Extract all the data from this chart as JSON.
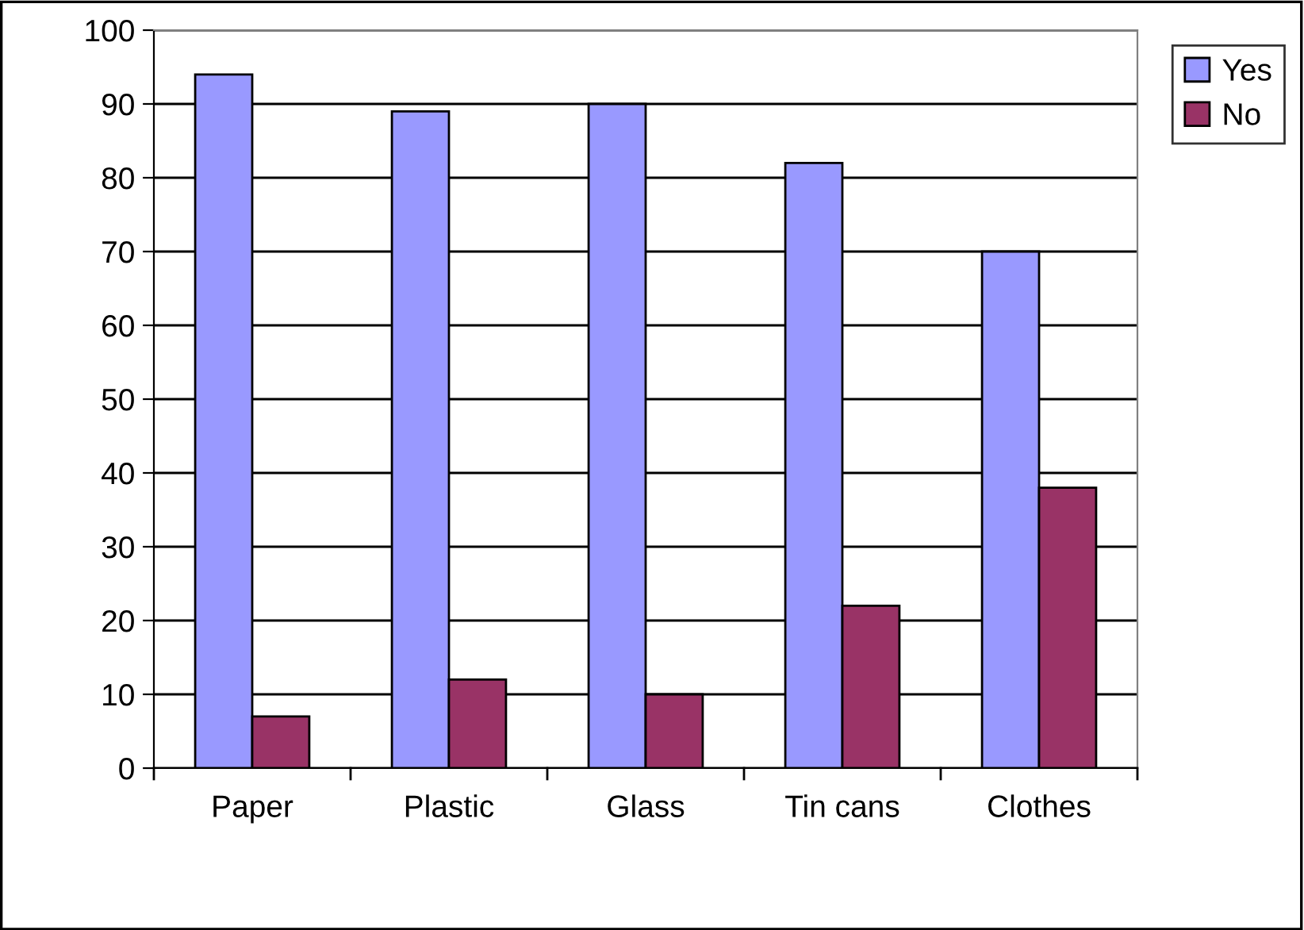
{
  "chart_data": {
    "type": "bar",
    "categories": [
      "Paper",
      "Plastic",
      "Glass",
      "Tin cans",
      "Clothes"
    ],
    "series": [
      {
        "name": "Yes",
        "color": "#9999ff",
        "values": [
          94,
          89,
          90,
          82,
          70
        ]
      },
      {
        "name": "No",
        "color": "#993366",
        "values": [
          7,
          12,
          10,
          22,
          38
        ]
      }
    ],
    "ylim": [
      0,
      100
    ],
    "yticks": [
      0,
      10,
      20,
      30,
      40,
      50,
      60,
      70,
      80,
      90,
      100
    ],
    "grid": "y",
    "legend": "top right"
  }
}
